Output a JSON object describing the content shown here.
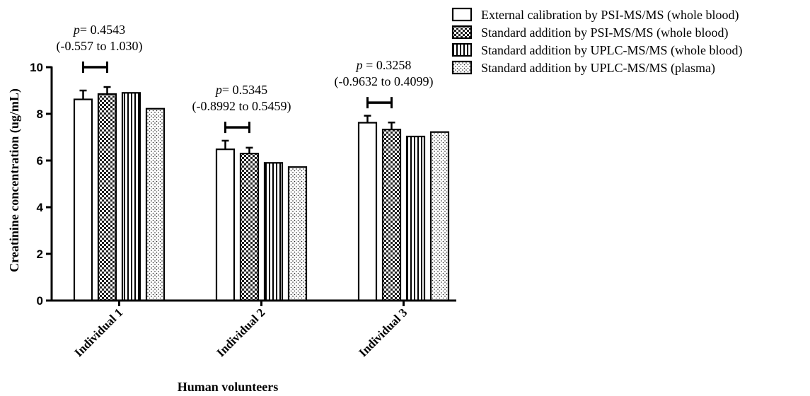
{
  "chart_data": {
    "type": "bar",
    "title": "",
    "xlabel": "Human volunteers",
    "ylabel": "Creatinine concentration (ug/mL)",
    "ylim": [
      0,
      10
    ],
    "yticks": [
      "0",
      "2",
      "4",
      "6",
      "8",
      "10"
    ],
    "categories": [
      "Individual 1",
      "Individual 2",
      "Individual 3"
    ],
    "series": [
      {
        "name": "External calibration by PSI-MS/MS (whole blood)",
        "pattern": "blank",
        "values": [
          8.62,
          6.48,
          7.62
        ],
        "errors": [
          0.38,
          0.37,
          0.3
        ]
      },
      {
        "name": "Standard addition by PSI-MS/MS (whole blood)",
        "pattern": "checker",
        "values": [
          8.85,
          6.3,
          7.33
        ],
        "errors": [
          0.3,
          0.25,
          0.3
        ]
      },
      {
        "name": "Standard addition by UPLC-MS/MS (whole blood)",
        "pattern": "vertical-lines",
        "values": [
          8.9,
          5.9,
          7.03
        ],
        "errors": [
          0,
          0,
          0
        ]
      },
      {
        "name": "Standard addition by UPLC-MS/MS (plasma)",
        "pattern": "dots",
        "values": [
          8.22,
          5.72,
          7.22
        ],
        "errors": [
          0,
          0,
          0
        ]
      }
    ],
    "legend_position": "top-right",
    "annotations": [
      {
        "category": "Individual 1",
        "p_prefix": "p",
        "p_text": "= 0.4543",
        "ci": "(-0.557 to 1.030)",
        "bracket_y": 10.0
      },
      {
        "category": "Individual 2",
        "p_prefix": "p",
        "p_text": "= 0.5345",
        "ci": "(-0.8992 to 0.5459)",
        "bracket_y": 7.42
      },
      {
        "category": "Individual 3",
        "p_prefix": "p",
        "p_text": " = 0.3258",
        "ci": "(-0.9632 to 0.4099)",
        "bracket_y": 8.48
      }
    ],
    "grid": false
  }
}
